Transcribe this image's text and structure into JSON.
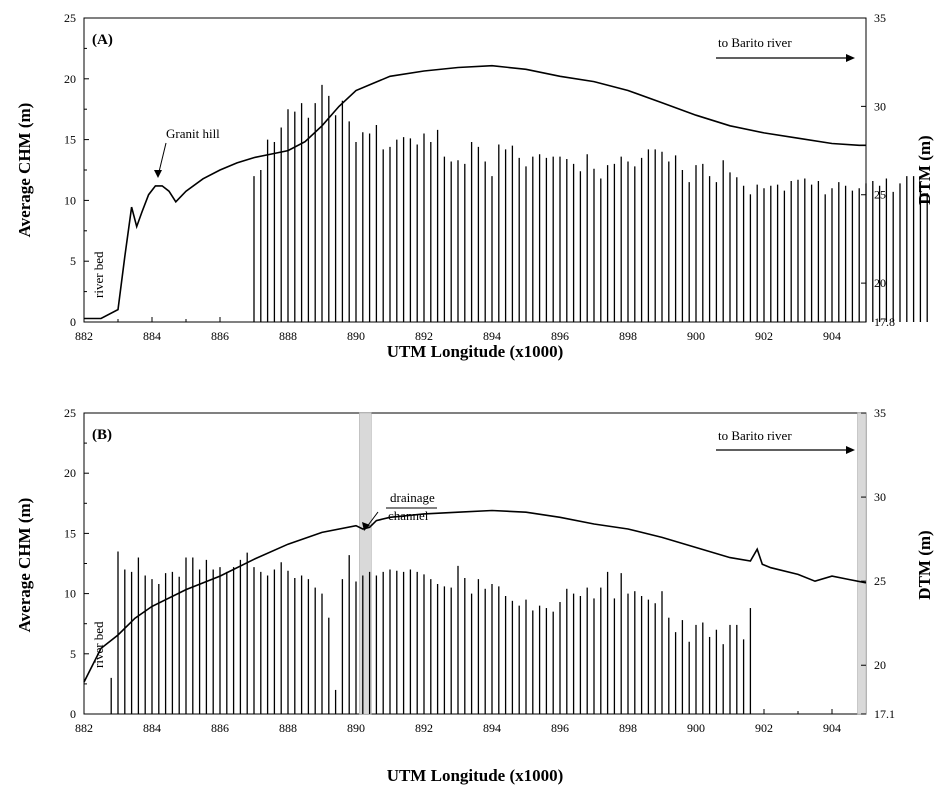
{
  "chart_data": [
    {
      "type": "bar+line",
      "panel_label": "(A)",
      "xlabel": "UTM Longitude (x1000)",
      "ylabel_left": "Average CHM (m)",
      "ylabel_right": "DTM (m)",
      "xlim": [
        882,
        905
      ],
      "ylim_left": [
        0,
        25
      ],
      "ylim_right": [
        17.8,
        35
      ],
      "x_ticks": [
        "882",
        "884",
        "886",
        "888",
        "890",
        "892",
        "894",
        "896",
        "898",
        "900",
        "902",
        "904"
      ],
      "y_left_ticks": [
        "0",
        "5",
        "10",
        "15",
        "20",
        "25"
      ],
      "y_right_ticks": [
        "17.8",
        "20",
        "25",
        "30",
        "35"
      ],
      "annotations": [
        "river bed",
        "Granit hill",
        "to Barito river"
      ],
      "bars": {
        "name": "Average CHM",
        "x_start": 887.0,
        "x_step": 0.2,
        "values": [
          12.0,
          12.5,
          15.0,
          14.8,
          16.0,
          17.5,
          17.3,
          18.0,
          16.8,
          18.0,
          19.5,
          18.6,
          17.0,
          18.2,
          16.5,
          14.8,
          15.6,
          15.5,
          16.2,
          14.2,
          14.4,
          15.0,
          15.2,
          15.1,
          14.6,
          15.5,
          14.8,
          15.8,
          13.6,
          13.2,
          13.3,
          13.0,
          14.8,
          14.4,
          13.2,
          12.0,
          14.6,
          14.2,
          14.5,
          13.5,
          12.8,
          13.6,
          13.8,
          13.5,
          13.6,
          13.6,
          13.4,
          13.0,
          12.4,
          13.8,
          12.6,
          11.8,
          12.9,
          13.0,
          13.6,
          13.2,
          12.8,
          13.5,
          14.2,
          14.2,
          14.0,
          13.2,
          13.7,
          12.5,
          11.5,
          12.9,
          13.0,
          12.0,
          11.5,
          13.3,
          12.3,
          11.9,
          11.2,
          10.5,
          11.3,
          11.0,
          11.2,
          11.3,
          10.8,
          11.6,
          11.7,
          11.8,
          11.3,
          11.6,
          10.5,
          11.0,
          11.5,
          11.2,
          10.8,
          11.0,
          11.4,
          11.6,
          11.2,
          11.8,
          10.7,
          11.4,
          12.0,
          12.0,
          11.5,
          10.6
        ]
      },
      "line": {
        "name": "DTM",
        "x": [
          882.0,
          882.5,
          883.0,
          883.2,
          883.4,
          883.55,
          883.7,
          883.9,
          884.1,
          884.3,
          884.5,
          884.7,
          885.0,
          885.5,
          886.0,
          886.5,
          887.0,
          887.5,
          888.0,
          888.5,
          889.0,
          889.5,
          890.0,
          890.5,
          891.0,
          892.0,
          893.0,
          894.0,
          895.0,
          896.0,
          897.0,
          898.0,
          899.0,
          900.0,
          901.0,
          902.0,
          903.0,
          904.0,
          904.8,
          905.0
        ],
        "y": [
          18.0,
          18.0,
          18.5,
          21.5,
          24.3,
          23.2,
          24.0,
          25.0,
          25.5,
          25.5,
          25.2,
          24.6,
          25.2,
          25.9,
          26.4,
          26.8,
          27.1,
          27.3,
          27.5,
          28.0,
          28.9,
          30.0,
          30.9,
          31.3,
          31.7,
          32.0,
          32.2,
          32.3,
          32.1,
          31.7,
          31.4,
          30.9,
          30.2,
          29.5,
          28.9,
          28.5,
          28.2,
          27.9,
          27.8,
          27.8
        ]
      }
    },
    {
      "type": "bar+line",
      "panel_label": "(B)",
      "xlabel": "UTM Longitude (x1000)",
      "ylabel_left": "Average CHM (m)",
      "ylabel_right": "DTM (m)",
      "xlim": [
        882,
        905
      ],
      "ylim_left": [
        0,
        25
      ],
      "ylim_right": [
        17.1,
        35
      ],
      "x_ticks": [
        "882",
        "884",
        "886",
        "888",
        "890",
        "892",
        "894",
        "896",
        "898",
        "900",
        "902",
        "904"
      ],
      "y_left_ticks": [
        "0",
        "5",
        "10",
        "15",
        "20",
        "25"
      ],
      "y_right_ticks": [
        "17.1",
        "20",
        "25",
        "30",
        "35"
      ],
      "annotations": [
        "river bed",
        "drainage channel",
        "to Barito river"
      ],
      "shaded_bands": [
        [
          890.1,
          890.45
        ],
        [
          904.75,
          905.0
        ]
      ],
      "bars": {
        "name": "Average CHM",
        "x_start": 882.8,
        "x_step": 0.2,
        "values": [
          3.0,
          13.5,
          12.0,
          11.8,
          13.0,
          11.5,
          11.2,
          10.8,
          11.7,
          11.8,
          11.4,
          13.0,
          13.0,
          12.0,
          12.8,
          12.0,
          12.2,
          11.8,
          12.2,
          12.8,
          13.4,
          12.2,
          11.8,
          11.5,
          12.0,
          12.6,
          11.9,
          11.3,
          11.5,
          11.2,
          10.5,
          10.0,
          8.0,
          2.0,
          11.2,
          13.2,
          11.0,
          11.5,
          11.8,
          11.5,
          11.8,
          12.0,
          11.9,
          11.8,
          12.0,
          11.8,
          11.6,
          11.2,
          10.8,
          10.6,
          10.5,
          12.3,
          11.3,
          10.0,
          11.2,
          10.4,
          10.8,
          10.6,
          9.8,
          9.4,
          9.0,
          9.5,
          8.6,
          9.0,
          8.8,
          8.5,
          9.3,
          10.4,
          10.0,
          9.8,
          10.5,
          9.6,
          10.5,
          11.8,
          9.6,
          11.7,
          10.0,
          10.2,
          9.8,
          9.5,
          9.2,
          10.2,
          8.0,
          6.8,
          7.8,
          6.0,
          7.4,
          7.6,
          6.4,
          7.0,
          5.8,
          7.4,
          7.4,
          6.2,
          8.8
        ]
      },
      "line": {
        "name": "DTM",
        "x": [
          882.0,
          882.5,
          883.0,
          883.5,
          884.0,
          885.0,
          886.0,
          887.0,
          888.0,
          889.0,
          890.0,
          890.2,
          890.4,
          890.6,
          891.0,
          892.0,
          893.0,
          894.0,
          895.0,
          896.0,
          897.0,
          898.0,
          899.0,
          900.0,
          901.0,
          901.6,
          901.8,
          901.95,
          902.2,
          903.0,
          903.5,
          904.0,
          904.5,
          905.0
        ],
        "y": [
          19.0,
          21.0,
          21.8,
          22.8,
          23.5,
          24.5,
          25.3,
          26.3,
          27.2,
          27.9,
          28.3,
          28.1,
          28.2,
          28.6,
          28.8,
          29.0,
          29.1,
          29.2,
          29.1,
          28.8,
          28.4,
          28.1,
          27.6,
          27.0,
          26.4,
          26.2,
          26.9,
          26.0,
          25.8,
          25.4,
          25.0,
          25.3,
          25.1,
          24.9
        ]
      }
    }
  ]
}
